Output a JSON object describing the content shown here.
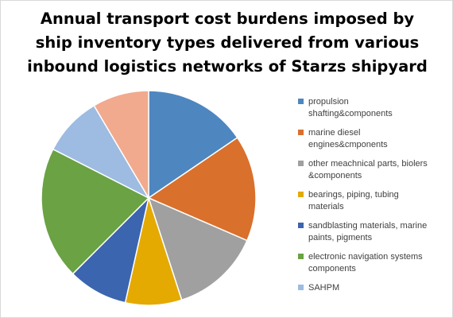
{
  "chart_data": {
    "type": "pie",
    "title_lines": [
      "Annual transport cost burdens imposed by",
      "ship inventory types delivered from various",
      "inbound logistics networks of Starzs shipyard"
    ],
    "legend_position": "right",
    "slices": [
      {
        "label": "propulsion shafting&components",
        "legend_lines": [
          "propulsion",
          "shafting&components"
        ],
        "value": 15.5,
        "color": "#4e86c0"
      },
      {
        "label": "marine diesel engines&cmponents",
        "legend_lines": [
          "marine diesel",
          "engines&cmponents"
        ],
        "value": 16.0,
        "color": "#d9702c"
      },
      {
        "label": "other meachnical parts, biolers &components",
        "legend_lines": [
          "other meachnical parts, biolers",
          "&components"
        ],
        "value": 13.5,
        "color": "#a0a0a0"
      },
      {
        "label": "bearings, piping, tubing materials",
        "legend_lines": [
          "bearings, piping, tubing",
          "materials"
        ],
        "value": 8.5,
        "color": "#e4aa02"
      },
      {
        "label": "sandblasting materials, marine paints, pigments",
        "legend_lines": [
          "sandblasting materials, marine",
          "paints, pigments"
        ],
        "value": 9.0,
        "color": "#3c65af"
      },
      {
        "label": "electronic navigation systems components",
        "legend_lines": [
          "electronic navigation systems",
          "components"
        ],
        "value": 20.0,
        "color": "#6aa244"
      },
      {
        "label": "SAHPM",
        "legend_lines": [
          "SAHPM"
        ],
        "value": 9.0,
        "color": "#9ebbe1"
      },
      {
        "label": "",
        "legend_lines": [],
        "value": 8.5,
        "color": "#f1aa8d"
      }
    ]
  }
}
